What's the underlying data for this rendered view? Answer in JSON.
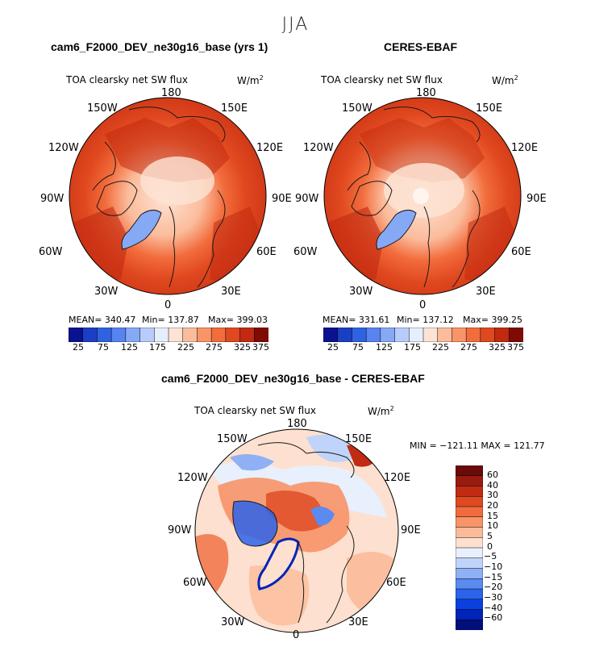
{
  "season": "JJA",
  "colors": {
    "coast": "#1a1a1a",
    "level_colors": [
      "#0a128f",
      "#1a3fc4",
      "#2f62e3",
      "#5784f0",
      "#86a9f6",
      "#b7ccfb",
      "#e6eefe",
      "#fde3d4",
      "#fbbc9c",
      "#f89467",
      "#f26c3c",
      "#e0481f",
      "#c12a10",
      "#7e0b06"
    ],
    "diff_colors": [
      "#000f7a",
      "#0023b8",
      "#0a40df",
      "#2c63ea",
      "#5b8af0",
      "#8fb0f5",
      "#c0d3fa",
      "#e8f0fe",
      "#fde0cf",
      "#fbbb9a",
      "#f79468",
      "#f06b3d",
      "#de4922",
      "#c02b12",
      "#991b0f",
      "#6b0a0a"
    ]
  },
  "panels": {
    "model": {
      "title": "cam6_F2000_DEV_ne30g16_base (yrs 1)",
      "variable": "TOA clearsky net SW flux",
      "units": "W/m",
      "units_exp": "2",
      "mean_text": "MEAN= 340.47",
      "min_text": "Min= 137.87",
      "max_text": "Max= 399.03"
    },
    "obs": {
      "title": "CERES-EBAF",
      "variable": "TOA clearsky net SW flux",
      "units": "W/m",
      "units_exp": "2",
      "mean_text": "MEAN= 331.61",
      "min_text": "Min= 137.12",
      "max_text": "Max= 399.25"
    },
    "diff": {
      "title": "cam6_F2000_DEV_ne30g16_base - CERES-EBAF",
      "variable": "TOA clearsky net SW flux",
      "units": "W/m",
      "units_exp": "2",
      "minmax_text": "MIN = −121.11  MAX = 121.77"
    }
  },
  "longitude_labels": {
    "lon180": "180",
    "lon150e": "150E",
    "lon120e": "120E",
    "lon90e": "90E",
    "lon60e": "60E",
    "lon30e": "30E",
    "lon0": "0",
    "lon30w": "30W",
    "lon60w": "60W",
    "lon90w": "90W",
    "lon120w": "120W",
    "lon150w": "150W"
  },
  "colorbar_top": {
    "labels": [
      "25",
      "75",
      "125",
      "175",
      "225",
      "275",
      "325",
      "375"
    ]
  },
  "colorbar_diff": {
    "labels": [
      "60",
      "40",
      "30",
      "20",
      "15",
      "10",
      "5",
      "0",
      "−5",
      "−10",
      "−15",
      "−20",
      "−30",
      "−40",
      "−60"
    ]
  }
}
